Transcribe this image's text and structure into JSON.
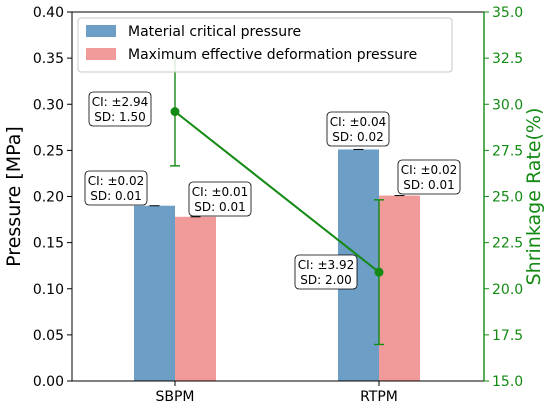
{
  "chart_data": {
    "type": "bar",
    "categories": [
      "SBPM",
      "RTPM"
    ],
    "ylabel": "Pressure [MPa]",
    "y2label": "Shrinkage Rate(%)",
    "ylim": [
      0.0,
      0.4
    ],
    "y2lim": [
      15.0,
      35.0
    ],
    "yticks": [
      "0.00",
      "0.05",
      "0.10",
      "0.15",
      "0.20",
      "0.25",
      "0.30",
      "0.35",
      "0.40"
    ],
    "y2ticks": [
      "15.0",
      "17.5",
      "20.0",
      "22.5",
      "25.0",
      "27.5",
      "30.0",
      "32.5",
      "35.0"
    ],
    "grid": false,
    "legend_position": "top-left",
    "series": [
      {
        "name": "Material critical pressure",
        "color": "#6c9ec6",
        "values": [
          0.19,
          0.251
        ],
        "errors": [
          0.001,
          0.001
        ],
        "annotations": [
          [
            "CI: ±0.02",
            "SD: 0.01"
          ],
          [
            "CI: ±0.04",
            "SD: 0.02"
          ]
        ]
      },
      {
        "name": "Maximum effective deformation pressure",
        "color": "#f09a9a",
        "values": [
          0.178,
          0.201
        ],
        "errors": [
          0.001,
          0.001
        ],
        "annotations": [
          [
            "CI: ±0.01",
            "SD: 0.01"
          ],
          [
            "CI: ±0.02",
            "SD: 0.01"
          ]
        ]
      }
    ],
    "line_series": {
      "color": "#138a13",
      "values": [
        29.6,
        20.9
      ],
      "errors": [
        2.94,
        3.92
      ],
      "annotations": [
        [
          "CI: ±2.94",
          "SD: 1.50"
        ],
        [
          "CI: ±3.92",
          "SD: 2.00"
        ]
      ]
    }
  }
}
